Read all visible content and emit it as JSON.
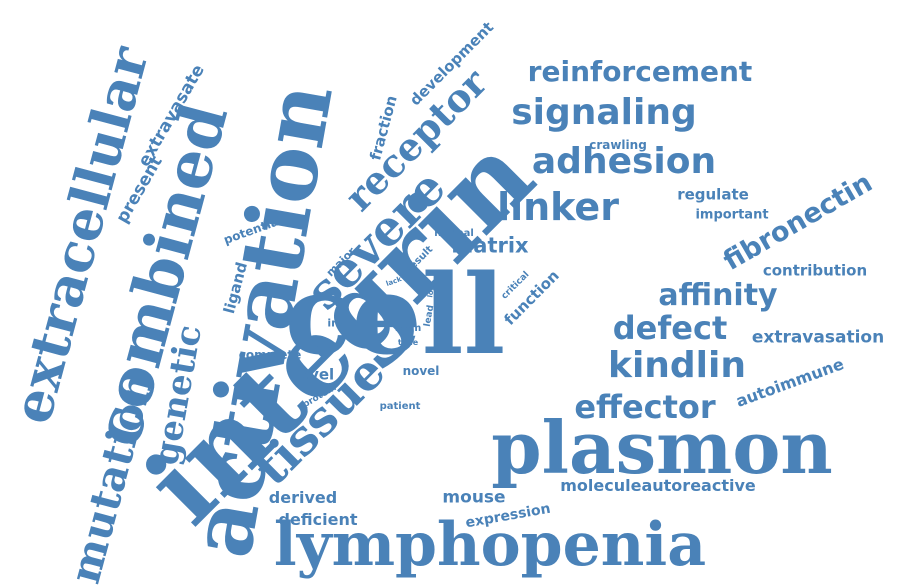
{
  "color": "#4a82b8",
  "words": [
    "integrin",
    "cell",
    "activation",
    "plasmon",
    "lymphopenia",
    "combined",
    "extracellular",
    "severe",
    "receptor",
    "signaling",
    "reinforcement",
    "adhesion",
    "linker",
    "tissue",
    "mutation",
    "kindlin",
    "defect",
    "effector",
    "fibronectin",
    "affinity",
    "genetic",
    "matrix",
    "extravasation",
    "contribution",
    "regulate",
    "important",
    "crawling",
    "autoimmune",
    "moleculeautoreactive",
    "mouse",
    "derived",
    "deficient",
    "expression",
    "development",
    "fraction",
    "extravasate",
    "present",
    "potential",
    "ligand",
    "major",
    "normal",
    "result",
    "null",
    "lack",
    "loss",
    "critical",
    "function",
    "induce",
    "form",
    "lead",
    "time",
    "complete",
    "level",
    "novel",
    "protein",
    "patient"
  ]
}
